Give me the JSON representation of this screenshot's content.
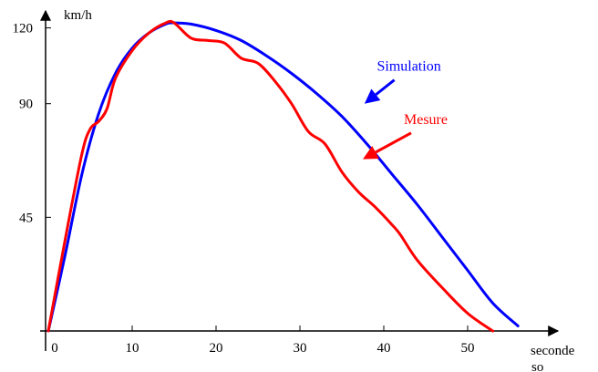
{
  "chart_data": {
    "type": "line",
    "title": "",
    "xlabel": "seconde so",
    "ylabel": "km/h",
    "xlim": [
      0,
      60
    ],
    "ylim": [
      0,
      130
    ],
    "x_ticks": [
      0,
      10,
      20,
      30,
      40,
      50
    ],
    "y_ticks": [
      45,
      90,
      120
    ],
    "grid": false,
    "series": [
      {
        "name": "Simulation",
        "color": "#0000ff",
        "x": [
          0,
          2,
          4,
          6,
          8,
          10,
          12,
          14,
          15,
          17,
          20,
          23,
          26,
          29,
          32,
          35,
          38,
          41,
          44,
          47,
          50,
          53,
          56
        ],
        "y": [
          0,
          30,
          62,
          86,
          102,
          112,
          118,
          121.5,
          122,
          121.5,
          119,
          115,
          109,
          102,
          94,
          85,
          74,
          62,
          50,
          37,
          24,
          11,
          2
        ]
      },
      {
        "name": "Mesure",
        "color": "#ff0000",
        "x": [
          0,
          2,
          4,
          5,
          6,
          7,
          8,
          10,
          12,
          14,
          15,
          17,
          19,
          21,
          23,
          25,
          27,
          29,
          31,
          33,
          35,
          37,
          39,
          41,
          42,
          44,
          47,
          50,
          53
        ],
        "y": [
          0,
          36,
          70,
          80,
          83,
          88,
          100,
          111,
          118,
          122,
          122,
          116,
          115,
          114,
          108,
          106,
          99,
          90,
          79,
          74,
          63,
          55,
          49,
          42,
          38,
          28,
          17,
          7,
          0
        ]
      }
    ],
    "annotations": [
      {
        "text": "Simulation",
        "color": "#0000ff",
        "x": 43,
        "y": 103,
        "arrow_to": [
          37.7,
          90
        ]
      },
      {
        "text": "Mesure",
        "color": "#ff0000",
        "x": 45,
        "y": 82,
        "arrow_to": [
          37.5,
          68
        ]
      }
    ]
  }
}
